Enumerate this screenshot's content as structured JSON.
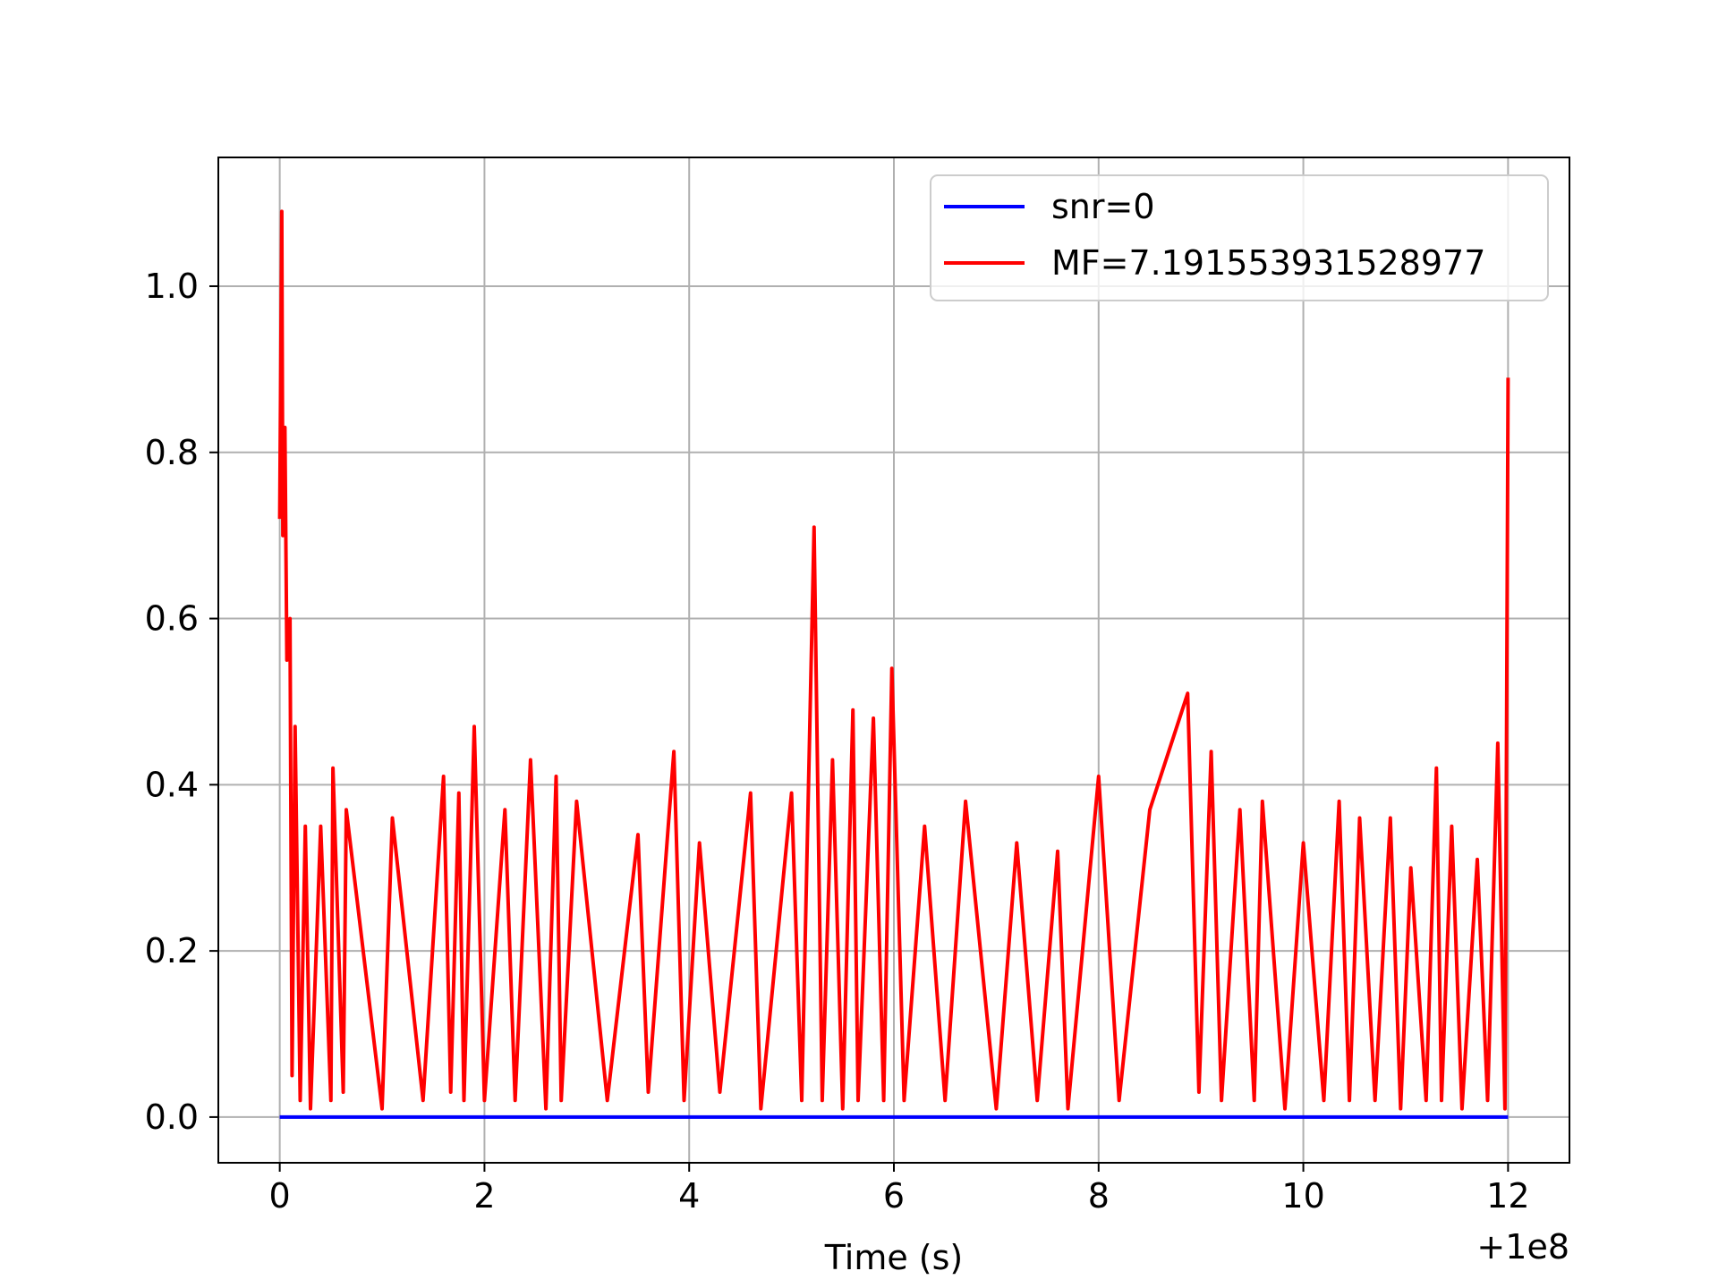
{
  "chart_data": {
    "type": "line",
    "title": "",
    "xlabel": "Time (s)",
    "ylabel": "",
    "x_offset_label": "+1e8",
    "xlim": [
      -0.6,
      12.6
    ],
    "ylim": [
      -0.055,
      1.155
    ],
    "x_ticks": [
      0,
      2,
      4,
      6,
      8,
      10,
      12
    ],
    "x_tick_labels": [
      "0",
      "2",
      "4",
      "6",
      "8",
      "10",
      "12"
    ],
    "y_ticks": [
      0.0,
      0.2,
      0.4,
      0.6,
      0.8,
      1.0
    ],
    "y_tick_labels": [
      "0.0",
      "0.2",
      "0.4",
      "0.6",
      "0.8",
      "1.0"
    ],
    "grid": true,
    "legend_position": "top-right",
    "series": [
      {
        "name": "snr=0",
        "color": "#0000ff",
        "x": [
          0,
          12
        ],
        "values": [
          0,
          0
        ]
      },
      {
        "name": "MF=7.191553931528977",
        "color": "#ff0000",
        "x": [
          0.0,
          0.02,
          0.03,
          0.05,
          0.07,
          0.1,
          0.12,
          0.15,
          0.2,
          0.25,
          0.3,
          0.4,
          0.5,
          0.52,
          0.62,
          0.65,
          1.0,
          1.1,
          1.4,
          1.6,
          1.67,
          1.75,
          1.8,
          1.9,
          2.0,
          2.2,
          2.3,
          2.45,
          2.6,
          2.7,
          2.75,
          2.9,
          3.2,
          3.5,
          3.6,
          3.85,
          3.95,
          4.1,
          4.3,
          4.6,
          4.7,
          5.0,
          5.1,
          5.22,
          5.3,
          5.4,
          5.5,
          5.6,
          5.65,
          5.8,
          5.9,
          5.98,
          6.1,
          6.3,
          6.5,
          6.7,
          7.0,
          7.2,
          7.4,
          7.6,
          7.7,
          8.0,
          8.2,
          8.5,
          8.87,
          8.98,
          9.1,
          9.2,
          9.38,
          9.52,
          9.6,
          9.82,
          10.0,
          10.2,
          10.35,
          10.45,
          10.55,
          10.7,
          10.85,
          10.95,
          11.05,
          11.2,
          11.3,
          11.35,
          11.45,
          11.55,
          11.7,
          11.8,
          11.9,
          11.97,
          12.0
        ],
        "values": [
          0.72,
          1.09,
          0.7,
          0.83,
          0.55,
          0.6,
          0.05,
          0.47,
          0.02,
          0.35,
          0.01,
          0.35,
          0.02,
          0.42,
          0.03,
          0.37,
          0.01,
          0.36,
          0.02,
          0.41,
          0.03,
          0.39,
          0.02,
          0.47,
          0.02,
          0.37,
          0.02,
          0.43,
          0.01,
          0.41,
          0.02,
          0.38,
          0.02,
          0.34,
          0.03,
          0.44,
          0.02,
          0.33,
          0.03,
          0.39,
          0.01,
          0.39,
          0.02,
          0.71,
          0.02,
          0.43,
          0.01,
          0.49,
          0.02,
          0.48,
          0.02,
          0.54,
          0.02,
          0.35,
          0.02,
          0.38,
          0.01,
          0.33,
          0.02,
          0.32,
          0.01,
          0.41,
          0.02,
          0.37,
          0.51,
          0.03,
          0.44,
          0.02,
          0.37,
          0.02,
          0.38,
          0.01,
          0.33,
          0.02,
          0.38,
          0.02,
          0.36,
          0.02,
          0.36,
          0.01,
          0.3,
          0.02,
          0.42,
          0.02,
          0.35,
          0.01,
          0.31,
          0.02,
          0.45,
          0.01,
          0.89
        ]
      }
    ]
  }
}
